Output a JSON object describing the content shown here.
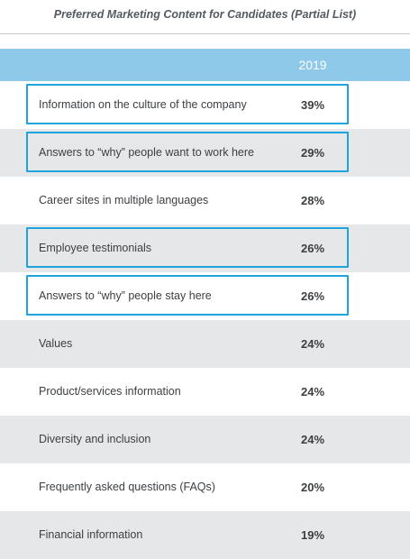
{
  "chart_data": {
    "type": "table",
    "title": "Preferred Marketing Content for Candidates (Partial List)",
    "column_header": "2019",
    "colors": {
      "header": "#8ec9ea",
      "highlight": "#1fa3dc",
      "stripe": "#e6e7e8"
    },
    "rows": [
      {
        "label": "Information on the culture of the company",
        "value": "39%",
        "highlighted": true
      },
      {
        "label": "Answers to “why” people want to work here",
        "value": "29%",
        "highlighted": true
      },
      {
        "label": "Career sites in multiple languages",
        "value": "28%",
        "highlighted": false
      },
      {
        "label": "Employee testimonials",
        "value": "26%",
        "highlighted": true
      },
      {
        "label": "Answers to “why” people stay here",
        "value": "26%",
        "highlighted": true
      },
      {
        "label": "Values",
        "value": "24%",
        "highlighted": false
      },
      {
        "label": "Product/services information",
        "value": "24%",
        "highlighted": false
      },
      {
        "label": "Diversity and inclusion",
        "value": "24%",
        "highlighted": false
      },
      {
        "label": "Frequently asked questions (FAQs)",
        "value": "20%",
        "highlighted": false
      },
      {
        "label": "Financial information",
        "value": "19%",
        "highlighted": false
      }
    ]
  }
}
